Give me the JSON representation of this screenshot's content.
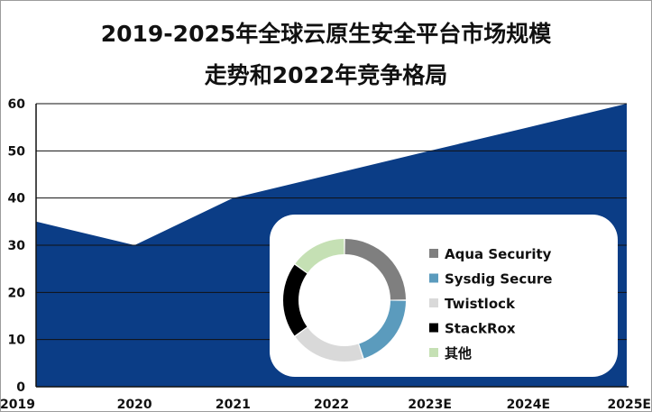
{
  "title": "2019-2025年全球云原生安全平台市场规模走势和2022年竞争格局",
  "title_lines": [
    "2019-2025年全球云原生安全平台市场规模",
    "走势和2022年竞争格局"
  ],
  "colors": {
    "area": "#0b3d86",
    "axis": "#111111",
    "inset_bg": "#ffffff"
  },
  "chart_data": [
    {
      "type": "area",
      "title": "2019-2025年全球云原生安全平台市场规模走势和2022年竞争格局",
      "x": [
        "2019",
        "2020",
        "2021",
        "2022",
        "2023E",
        "2024E",
        "2025E"
      ],
      "values": [
        35,
        30,
        40,
        45,
        50,
        55,
        60
      ],
      "ylim": [
        0,
        60
      ],
      "yticks": [
        0,
        10,
        20,
        30,
        40,
        50,
        60
      ],
      "xlabel": "",
      "ylabel": "",
      "grid": "horizontal",
      "color": "#0b3d86"
    },
    {
      "type": "pie",
      "style": "donut",
      "legend_position": "right",
      "labels": [
        "Aqua Security",
        "Sysdig Secure",
        "Twistlock",
        "StackRox",
        "其他"
      ],
      "values": [
        25,
        20,
        20,
        20,
        15
      ],
      "colors": [
        "#7f7f7f",
        "#5b9bbd",
        "#d9d9d9",
        "#000000",
        "#c5e0b4"
      ]
    }
  ]
}
